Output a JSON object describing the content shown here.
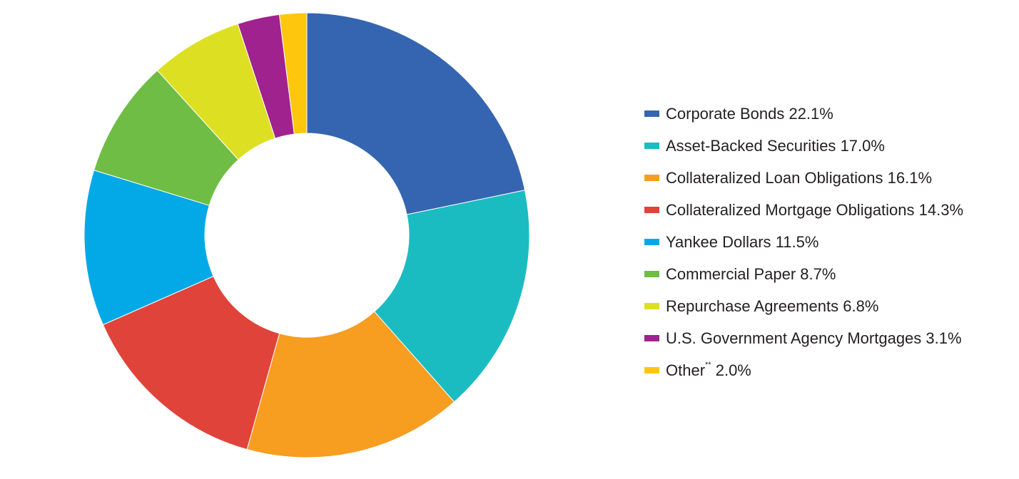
{
  "chart_data": {
    "type": "pie",
    "title": "",
    "legend_position": "right",
    "slices": [
      {
        "label": "Corporate Bonds",
        "value": 22.1,
        "display": "22.1%",
        "color": "#3565b0"
      },
      {
        "label": "Asset-Backed Securities",
        "value": 17.0,
        "display": "17.0%",
        "color": "#1bbcc1"
      },
      {
        "label": "Collateralized Loan Obligations",
        "value": 16.1,
        "display": "16.1%",
        "color": "#f79d20"
      },
      {
        "label": "Collateralized Mortgage Obligations",
        "value": 14.3,
        "display": "14.3%",
        "color": "#e0433a"
      },
      {
        "label": "Yankee Dollars",
        "value": 11.5,
        "display": "11.5%",
        "color": "#02a9e6"
      },
      {
        "label": "Commercial Paper",
        "value": 8.7,
        "display": "8.7%",
        "color": "#6fbd44"
      },
      {
        "label": "Repurchase Agreements",
        "value": 6.8,
        "display": "6.8%",
        "color": "#dde022"
      },
      {
        "label": "U.S. Government Agency Mortgages",
        "value": 3.1,
        "display": "3.1%",
        "color": "#a0228e"
      },
      {
        "label": "Other",
        "footnote_mark": "**",
        "value": 2.0,
        "display": "2.0%",
        "color": "#fec70e"
      }
    ]
  }
}
